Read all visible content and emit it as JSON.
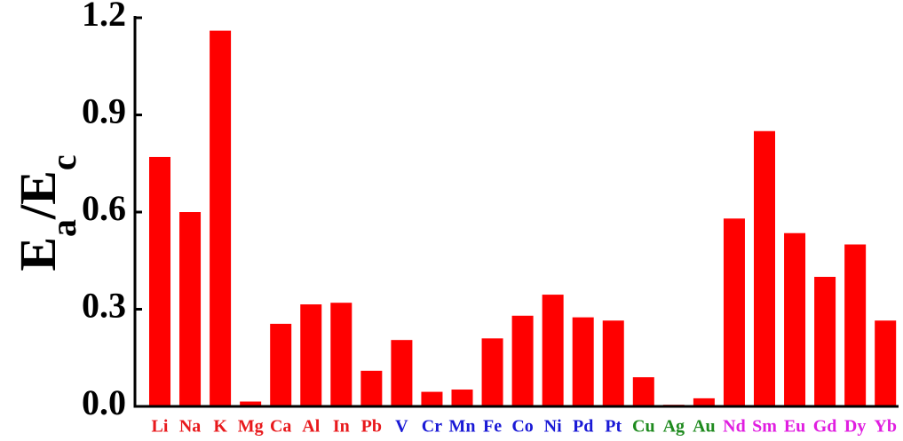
{
  "chart_data": {
    "type": "bar",
    "y_label": [
      "E",
      "a",
      "/E",
      "c"
    ],
    "y_label_subscript": [
      false,
      true,
      false,
      true
    ],
    "categories": [
      "Li",
      "Na",
      "K",
      "Mg",
      "Ca",
      "Al",
      "In",
      "Pb",
      "V",
      "Cr",
      "Mn",
      "Fe",
      "Co",
      "Ni",
      "Pd",
      "Pt",
      "Cu",
      "Ag",
      "Au",
      "Nd",
      "Sm",
      "Eu",
      "Gd",
      "Dy",
      "Yb"
    ],
    "category_colors": [
      "#e8191c",
      "#e8191c",
      "#e8191c",
      "#e8191c",
      "#e8191c",
      "#e8191c",
      "#e8191c",
      "#e8191c",
      "#1a1ad6",
      "#1a1ad6",
      "#1a1ad6",
      "#1a1ad6",
      "#1a1ad6",
      "#1a1ad6",
      "#1a1ad6",
      "#1a1ad6",
      "#1e8a1e",
      "#1e8a1e",
      "#1e8a1e",
      "#e01ee0",
      "#e01ee0",
      "#e01ee0",
      "#e01ee0",
      "#e01ee0",
      "#e01ee0"
    ],
    "values": [
      0.77,
      0.6,
      1.16,
      0.015,
      0.255,
      0.315,
      0.32,
      0.11,
      0.205,
      0.045,
      0.052,
      0.21,
      0.28,
      0.345,
      0.275,
      0.265,
      0.09,
      0.005,
      0.025,
      0.58,
      0.85,
      0.535,
      0.4,
      0.5,
      0.265
    ],
    "color": "#ff0000",
    "ylim": [
      0,
      1.2
    ],
    "yticks": [
      {
        "value": 0,
        "label": "0.0"
      },
      0.3,
      0.6,
      0.9,
      1.2
    ]
  }
}
